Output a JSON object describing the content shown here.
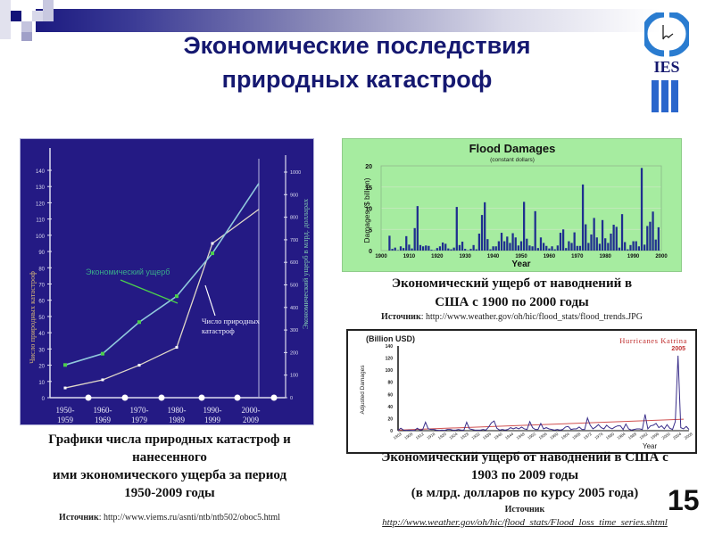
{
  "slide": {
    "title_line1": "Экономические последствия",
    "title_line2": "природных катастроф",
    "page_number": "15",
    "logo_text": "IES",
    "colors": {
      "title": "#151870",
      "left_panel_bg": "#241a84",
      "green_panel_bg": "#a6eca0",
      "bar_color": "#1f2f8f",
      "katrina_line": "#3a2e8a",
      "trend_line": "#d05050",
      "katrina_label": "#c03030"
    }
  },
  "left_caption": {
    "line1": "Графики числа природных катастроф и",
    "line2": "нанесенного",
    "line3": "ими экономического ущерба за период",
    "line4": "1950-2009 годы",
    "source_label": "Источник",
    "source_url": ": http://www.viems.ru/asnti/ntb/ntb502/oboc5.html"
  },
  "top_right_caption": {
    "line1": "Экономический ущерб от наводнений  в",
    "line2": "США с 1900 по 2000 годы",
    "source_label": "Источник",
    "source_url": ": http://www.weather.gov/oh/hic/flood_stats/flood_trends.JPG"
  },
  "bottom_right_caption": {
    "line1": "Экономический ущерб от наводнений  в США с",
    "line2": "1903 по 2009 годы",
    "line3": "(в млрд. долларов по курсу 2005 года)",
    "source_label": "Источник",
    "source_url": "http://www.weather.gov/oh/hic/flood_stats/Flood_loss_time_series.shtml"
  },
  "chart_data": [
    {
      "type": "line",
      "title": "",
      "categories": [
        "1950-1959",
        "1960-1969",
        "1970-1979",
        "1980-1989",
        "1990-1999",
        "2000-2009"
      ],
      "series": [
        {
          "name": "Экономический ущерб",
          "axis": "right",
          "values": [
            145,
            195,
            335,
            450,
            640,
            950
          ],
          "color": "#8ec8d8",
          "marker_color": "#4ccf4c"
        },
        {
          "name": "Число природных катастроф",
          "axis": "left",
          "values": [
            6,
            11,
            20,
            31,
            95,
            116
          ],
          "color": "#e8e0f0",
          "marker_color": "#ffffff"
        }
      ],
      "ylabel": "Число природных катастроф",
      "ylabel_right": "Экономический ущерб  в млрд. долларах",
      "ylim": [
        0,
        140
      ],
      "ylim_right": [
        0,
        1000
      ],
      "yticks": [
        "0",
        "10",
        "20",
        "30",
        "40",
        "50",
        "60",
        "70",
        "80",
        "90",
        "100",
        "110",
        "120",
        "130",
        "140"
      ],
      "yticks_right": [
        "0",
        "100",
        "200",
        "300",
        "400",
        "500",
        "600",
        "700",
        "800",
        "900",
        "1000"
      ],
      "annotations": [
        "Экономический ущерб",
        "Число природных катастроф"
      ],
      "grid": false
    },
    {
      "type": "bar",
      "title": "Flood Damages",
      "subtitle": "(constant dollars)",
      "xlabel": "Year",
      "ylabel": "Damages ($ billion)",
      "ylim": [
        0,
        20
      ],
      "yticks": [
        "0",
        "5",
        "10",
        "15",
        "20"
      ],
      "xticks": [
        "1900",
        "1910",
        "1920",
        "1930",
        "1940",
        "1950",
        "1960",
        "1970",
        "1980",
        "1990",
        "2000"
      ],
      "x": [
        1903,
        1904,
        1905,
        1906,
        1907,
        1908,
        1909,
        1910,
        1911,
        1912,
        1913,
        1914,
        1915,
        1916,
        1917,
        1918,
        1919,
        1920,
        1921,
        1922,
        1923,
        1924,
        1925,
        1926,
        1927,
        1928,
        1929,
        1930,
        1931,
        1932,
        1933,
        1934,
        1935,
        1936,
        1937,
        1938,
        1939,
        1940,
        1941,
        1942,
        1943,
        1944,
        1945,
        1946,
        1947,
        1948,
        1949,
        1950,
        1951,
        1952,
        1953,
        1954,
        1955,
        1956,
        1957,
        1958,
        1959,
        1960,
        1961,
        1962,
        1963,
        1964,
        1965,
        1966,
        1967,
        1968,
        1969,
        1970,
        1971,
        1972,
        1973,
        1974,
        1975,
        1976,
        1977,
        1978,
        1979,
        1980,
        1981,
        1982,
        1983,
        1984,
        1985,
        1986,
        1987,
        1988,
        1989,
        1990,
        1991,
        1992,
        1993,
        1994,
        1995,
        1996,
        1997,
        1998,
        1999
      ],
      "values": [
        3.5,
        0.4,
        0.7,
        0.1,
        1.0,
        0.6,
        3.4,
        1.4,
        0.5,
        5.3,
        10.5,
        1.3,
        1.0,
        1.2,
        1.1,
        0.2,
        0.1,
        0.6,
        1.0,
        1.9,
        1.6,
        0.5,
        0.3,
        0.7,
        10.3,
        1.3,
        2.1,
        0.4,
        0.1,
        0.4,
        1.3,
        0.3,
        4.0,
        8.4,
        11.4,
        2.7,
        0.3,
        1.0,
        1.0,
        2.2,
        4.2,
        2.2,
        3.3,
        1.8,
        4.1,
        3.1,
        1.2,
        2.2,
        11.5,
        2.8,
        1.2,
        1.0,
        9.3,
        0.6,
        3.1,
        1.8,
        1.1,
        0.5,
        1.0,
        0.3,
        1.2,
        4.2,
        5.0,
        0.6,
        2.2,
        1.8,
        4.3,
        1.1,
        1.1,
        15.6,
        6.2,
        1.8,
        3.8,
        7.7,
        3.1,
        1.6,
        7.2,
        2.9,
        1.8,
        4.0,
        6.1,
        5.6,
        0.7,
        8.6,
        2.0,
        0.3,
        1.3,
        2.2,
        2.2,
        1.0,
        19.5,
        1.4,
        5.8,
        6.8,
        9.2,
        2.6,
        5.5
      ],
      "grid": true
    },
    {
      "type": "line",
      "title": "(Billion USD)",
      "annotation": "Hurricanes Katrina 2005",
      "xlabel": "Year",
      "ylabel": "Adjusted Damages",
      "ylim": [
        0,
        140
      ],
      "yticks": [
        "0",
        "20",
        "40",
        "60",
        "80",
        "100",
        "120",
        "140"
      ],
      "xticks": [
        "1903",
        "1908",
        "1912",
        "1916",
        "1920",
        "1924",
        "1928",
        "1932",
        "1936",
        "1940",
        "1944",
        "1948",
        "1952",
        "1956",
        "1960",
        "1964",
        "1968",
        "1972",
        "1976",
        "1980",
        "1984",
        "1988",
        "1992",
        "1996",
        "2000",
        "2004",
        "2008"
      ],
      "series": [
        {
          "name": "Adjusted Damages",
          "values": [
            0.5,
            4,
            1,
            0.5,
            1,
            0.5,
            0.5,
            4,
            1,
            2,
            14,
            3,
            2,
            2,
            1,
            0.5,
            1,
            0.5,
            2,
            2,
            1,
            1,
            2,
            1,
            1,
            14,
            3,
            2,
            1,
            1,
            1,
            2,
            1,
            6,
            13,
            16,
            4,
            1,
            2,
            1,
            2,
            5,
            3,
            5,
            3,
            6,
            3,
            2,
            15,
            5,
            2,
            2,
            12,
            3,
            5,
            3,
            2,
            1,
            2,
            1,
            2,
            6,
            7,
            2,
            3,
            3,
            6,
            2,
            2,
            21,
            9,
            3,
            6,
            10,
            5,
            3,
            9,
            5,
            3,
            6,
            8,
            8,
            2,
            11,
            3,
            1,
            2,
            3,
            3,
            2,
            27,
            3,
            8,
            9,
            12,
            5,
            8,
            3,
            10,
            4,
            2,
            15,
            124,
            5,
            3,
            7,
            2
          ]
        },
        {
          "name": "Trend",
          "values_endpoints": [
            1,
            19
          ]
        }
      ],
      "grid": false
    }
  ]
}
